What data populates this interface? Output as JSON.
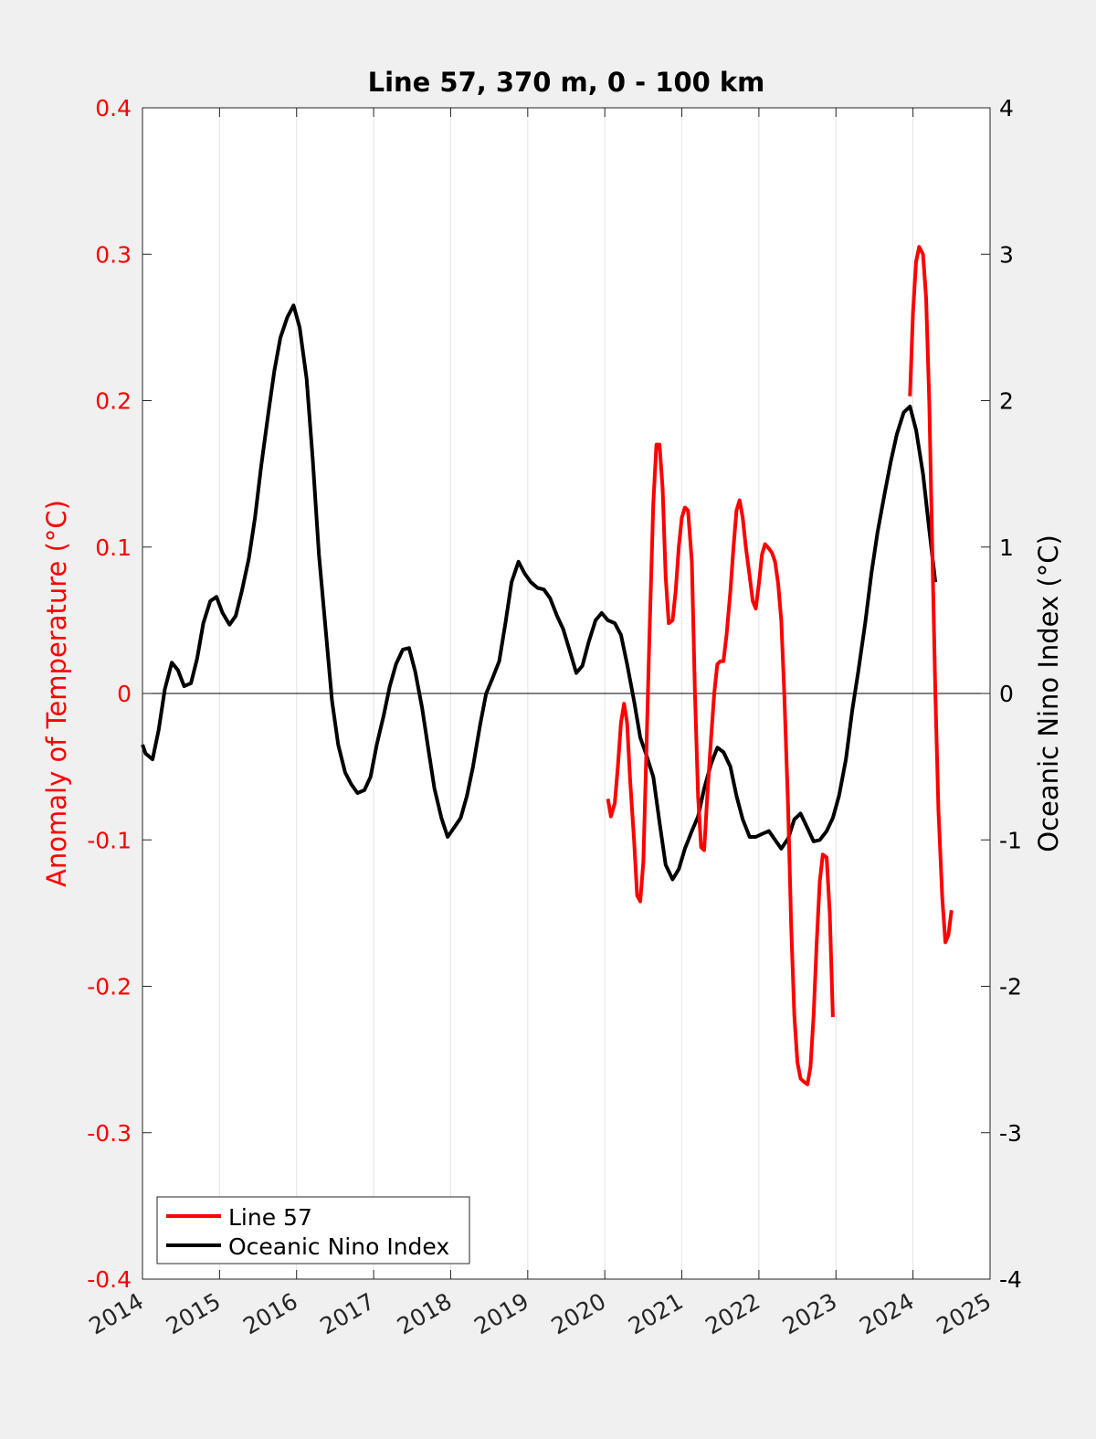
{
  "chart_data": {
    "type": "line",
    "title": "Line 57, 370 m, 0 - 100 km",
    "xlabel": "",
    "xlim": [
      2014,
      2025
    ],
    "x_ticks": [
      "2014",
      "2015",
      "2016",
      "2017",
      "2018",
      "2019",
      "2020",
      "2021",
      "2022",
      "2023",
      "2024",
      "2025"
    ],
    "y_left": {
      "label": "Anomaly of Temperature (°C)",
      "lim": [
        -0.4,
        0.4
      ],
      "ticks": [
        "-0.4",
        "-0.3",
        "-0.2",
        "-0.1",
        "0",
        "0.1",
        "0.2",
        "0.3",
        "0.4"
      ],
      "color": "#ff0000"
    },
    "y_right": {
      "label": "Oceanic Nino Index (°C)",
      "lim": [
        -4,
        4
      ],
      "ticks": [
        "-4",
        "-3",
        "-2",
        "-1",
        "0",
        "1",
        "2",
        "3",
        "4"
      ],
      "color": "#000000"
    },
    "grid": "vertical",
    "legend_position": "bottom-left",
    "series": [
      {
        "name": "Line 57",
        "axis": "left",
        "color": "#ff0000",
        "segments": [
          [
            [
              2020.04,
              -0.072
            ],
            [
              2020.08,
              -0.084
            ],
            [
              2020.13,
              -0.075
            ],
            [
              2020.17,
              -0.05
            ],
            [
              2020.21,
              -0.02
            ],
            [
              2020.25,
              -0.007
            ],
            [
              2020.29,
              -0.02
            ],
            [
              2020.33,
              -0.06
            ],
            [
              2020.38,
              -0.1
            ],
            [
              2020.42,
              -0.138
            ],
            [
              2020.46,
              -0.142
            ],
            [
              2020.5,
              -0.115
            ],
            [
              2020.54,
              -0.04
            ],
            [
              2020.58,
              0.04
            ],
            [
              2020.63,
              0.13
            ],
            [
              2020.67,
              0.17
            ],
            [
              2020.71,
              0.17
            ],
            [
              2020.75,
              0.14
            ],
            [
              2020.79,
              0.08
            ],
            [
              2020.83,
              0.048
            ],
            [
              2020.88,
              0.05
            ],
            [
              2020.92,
              0.07
            ],
            [
              2020.96,
              0.1
            ],
            [
              2021.0,
              0.12
            ],
            [
              2021.04,
              0.127
            ],
            [
              2021.08,
              0.125
            ],
            [
              2021.13,
              0.09
            ],
            [
              2021.17,
              0.0
            ],
            [
              2021.21,
              -0.07
            ],
            [
              2021.25,
              -0.105
            ],
            [
              2021.29,
              -0.107
            ],
            [
              2021.33,
              -0.07
            ],
            [
              2021.38,
              -0.03
            ],
            [
              2021.42,
              0.0
            ],
            [
              2021.46,
              0.02
            ],
            [
              2021.5,
              0.022
            ],
            [
              2021.54,
              0.022
            ],
            [
              2021.58,
              0.04
            ],
            [
              2021.63,
              0.07
            ],
            [
              2021.67,
              0.1
            ],
            [
              2021.71,
              0.125
            ],
            [
              2021.75,
              0.132
            ],
            [
              2021.79,
              0.12
            ],
            [
              2021.83,
              0.1
            ],
            [
              2021.88,
              0.08
            ],
            [
              2021.92,
              0.063
            ],
            [
              2021.96,
              0.058
            ],
            [
              2022.0,
              0.075
            ],
            [
              2022.04,
              0.095
            ],
            [
              2022.08,
              0.102
            ],
            [
              2022.13,
              0.099
            ],
            [
              2022.17,
              0.096
            ],
            [
              2022.21,
              0.09
            ],
            [
              2022.25,
              0.075
            ],
            [
              2022.29,
              0.05
            ],
            [
              2022.33,
              0.0
            ],
            [
              2022.38,
              -0.08
            ],
            [
              2022.42,
              -0.16
            ],
            [
              2022.46,
              -0.22
            ],
            [
              2022.5,
              -0.252
            ],
            [
              2022.54,
              -0.263
            ],
            [
              2022.58,
              -0.265
            ],
            [
              2022.63,
              -0.267
            ],
            [
              2022.67,
              -0.255
            ],
            [
              2022.71,
              -0.22
            ],
            [
              2022.75,
              -0.17
            ],
            [
              2022.79,
              -0.128
            ],
            [
              2022.83,
              -0.11
            ],
            [
              2022.88,
              -0.112
            ],
            [
              2022.92,
              -0.15
            ],
            [
              2022.96,
              -0.221
            ]
          ],
          [
            [
              2023.96,
              0.203
            ],
            [
              2024.0,
              0.26
            ],
            [
              2024.04,
              0.295
            ],
            [
              2024.08,
              0.305
            ],
            [
              2024.13,
              0.3
            ],
            [
              2024.17,
              0.27
            ],
            [
              2024.21,
              0.2
            ],
            [
              2024.25,
              0.1
            ],
            [
              2024.29,
              0.0
            ],
            [
              2024.33,
              -0.08
            ],
            [
              2024.38,
              -0.14
            ],
            [
              2024.42,
              -0.17
            ],
            [
              2024.46,
              -0.165
            ],
            [
              2024.5,
              -0.148
            ]
          ]
        ]
      },
      {
        "name": "Oceanic Nino Index",
        "axis": "right",
        "color": "#000000",
        "segments": [
          [
            [
              2014.0,
              -0.35
            ],
            [
              2014.04,
              -0.41
            ],
            [
              2014.13,
              -0.45
            ],
            [
              2014.21,
              -0.25
            ],
            [
              2014.29,
              0.03
            ],
            [
              2014.38,
              0.21
            ],
            [
              2014.46,
              0.16
            ],
            [
              2014.54,
              0.05
            ],
            [
              2014.63,
              0.07
            ],
            [
              2014.71,
              0.24
            ],
            [
              2014.79,
              0.48
            ],
            [
              2014.88,
              0.63
            ],
            [
              2014.96,
              0.66
            ],
            [
              2015.04,
              0.55
            ],
            [
              2015.13,
              0.47
            ],
            [
              2015.21,
              0.53
            ],
            [
              2015.29,
              0.7
            ],
            [
              2015.38,
              0.92
            ],
            [
              2015.46,
              1.2
            ],
            [
              2015.54,
              1.55
            ],
            [
              2015.63,
              1.9
            ],
            [
              2015.71,
              2.2
            ],
            [
              2015.79,
              2.43
            ],
            [
              2015.88,
              2.57
            ],
            [
              2015.96,
              2.65
            ],
            [
              2016.04,
              2.5
            ],
            [
              2016.13,
              2.15
            ],
            [
              2016.21,
              1.6
            ],
            [
              2016.29,
              0.95
            ],
            [
              2016.38,
              0.42
            ],
            [
              2016.46,
              -0.05
            ],
            [
              2016.54,
              -0.35
            ],
            [
              2016.63,
              -0.54
            ],
            [
              2016.71,
              -0.62
            ],
            [
              2016.79,
              -0.68
            ],
            [
              2016.88,
              -0.66
            ],
            [
              2016.96,
              -0.57
            ],
            [
              2017.04,
              -0.35
            ],
            [
              2017.13,
              -0.15
            ],
            [
              2017.21,
              0.05
            ],
            [
              2017.29,
              0.2
            ],
            [
              2017.38,
              0.3
            ],
            [
              2017.46,
              0.31
            ],
            [
              2017.54,
              0.15
            ],
            [
              2017.63,
              -0.1
            ],
            [
              2017.71,
              -0.38
            ],
            [
              2017.79,
              -0.65
            ],
            [
              2017.88,
              -0.85
            ],
            [
              2017.96,
              -0.98
            ],
            [
              2018.04,
              -0.92
            ],
            [
              2018.13,
              -0.85
            ],
            [
              2018.21,
              -0.7
            ],
            [
              2018.29,
              -0.5
            ],
            [
              2018.38,
              -0.22
            ],
            [
              2018.46,
              0.0
            ],
            [
              2018.54,
              0.1
            ],
            [
              2018.63,
              0.22
            ],
            [
              2018.71,
              0.48
            ],
            [
              2018.79,
              0.76
            ],
            [
              2018.88,
              0.9
            ],
            [
              2018.96,
              0.82
            ],
            [
              2019.04,
              0.76
            ],
            [
              2019.13,
              0.72
            ],
            [
              2019.21,
              0.71
            ],
            [
              2019.29,
              0.65
            ],
            [
              2019.38,
              0.53
            ],
            [
              2019.46,
              0.44
            ],
            [
              2019.54,
              0.3
            ],
            [
              2019.63,
              0.14
            ],
            [
              2019.71,
              0.19
            ],
            [
              2019.79,
              0.35
            ],
            [
              2019.88,
              0.5
            ],
            [
              2019.96,
              0.55
            ],
            [
              2020.04,
              0.5
            ],
            [
              2020.13,
              0.48
            ],
            [
              2020.21,
              0.4
            ],
            [
              2020.29,
              0.2
            ],
            [
              2020.38,
              -0.05
            ],
            [
              2020.46,
              -0.3
            ],
            [
              2020.54,
              -0.42
            ],
            [
              2020.63,
              -0.57
            ],
            [
              2020.71,
              -0.88
            ],
            [
              2020.79,
              -1.17
            ],
            [
              2020.88,
              -1.27
            ],
            [
              2020.96,
              -1.2
            ],
            [
              2021.04,
              -1.06
            ],
            [
              2021.13,
              -0.94
            ],
            [
              2021.21,
              -0.84
            ],
            [
              2021.29,
              -0.65
            ],
            [
              2021.38,
              -0.48
            ],
            [
              2021.46,
              -0.37
            ],
            [
              2021.54,
              -0.4
            ],
            [
              2021.63,
              -0.5
            ],
            [
              2021.71,
              -0.7
            ],
            [
              2021.79,
              -0.86
            ],
            [
              2021.88,
              -0.98
            ],
            [
              2021.96,
              -0.98
            ],
            [
              2022.04,
              -0.96
            ],
            [
              2022.13,
              -0.94
            ],
            [
              2022.21,
              -1.0
            ],
            [
              2022.29,
              -1.06
            ],
            [
              2022.38,
              -0.99
            ],
            [
              2022.46,
              -0.86
            ],
            [
              2022.54,
              -0.82
            ],
            [
              2022.63,
              -0.92
            ],
            [
              2022.71,
              -1.01
            ],
            [
              2022.79,
              -1.0
            ],
            [
              2022.88,
              -0.94
            ],
            [
              2022.96,
              -0.85
            ],
            [
              2023.04,
              -0.7
            ],
            [
              2023.13,
              -0.45
            ],
            [
              2023.21,
              -0.12
            ],
            [
              2023.29,
              0.15
            ],
            [
              2023.38,
              0.48
            ],
            [
              2023.46,
              0.82
            ],
            [
              2023.54,
              1.1
            ],
            [
              2023.63,
              1.36
            ],
            [
              2023.71,
              1.58
            ],
            [
              2023.79,
              1.77
            ],
            [
              2023.88,
              1.92
            ],
            [
              2023.96,
              1.96
            ],
            [
              2024.04,
              1.8
            ],
            [
              2024.13,
              1.5
            ],
            [
              2024.21,
              1.12
            ],
            [
              2024.29,
              0.76
            ]
          ]
        ]
      }
    ]
  }
}
